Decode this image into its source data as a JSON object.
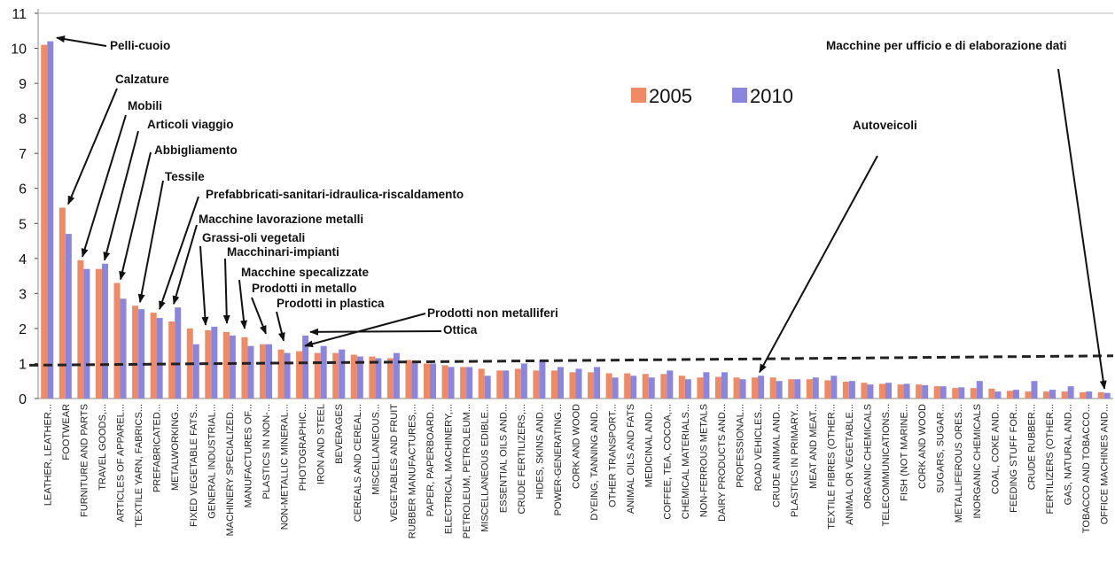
{
  "chart_data": {
    "type": "bar",
    "title": "",
    "xlabel": "",
    "ylabel": "",
    "ylim": [
      0,
      11
    ],
    "yticks": [
      0,
      1,
      2,
      3,
      4,
      5,
      6,
      7,
      8,
      9,
      10,
      11
    ],
    "grid": "off",
    "legend_position": "top-center",
    "colors": {
      "2005": "#f08a64",
      "2010": "#8a86e0"
    },
    "categories": [
      "LEATHER, LEATHER...",
      "FOOTWEAR",
      "FURNITURE AND PARTS",
      "TRAVEL GOODS,...",
      "ARTICLES OF APPAREL...",
      "TEXTILE YARN, FABRICS...",
      "PREFABRICATED...",
      "METALWORKING...",
      "FIXED VEGETABLE FATS...",
      "GENERAL INDUSTRIAL...",
      "MACHINERY SPECIALIZED...",
      "MANUFACTURES OF...",
      "PLASTICS IN NON-...",
      "NON-METALLIC MINERAL...",
      "PHOTOGRAPHIC...",
      "IRON AND STEEL",
      "BEVERAGES",
      "CEREALS AND CEREAL...",
      "MISCELLANEOUS...",
      "VEGETABLES AND FRUIT",
      "RUBBER MANUFACTURES,...",
      "PAPER, PAPERBOARD...",
      "ELECTRICAL MACHINERY,...",
      "PETROLEUM, PETROLEUM...",
      "MISCELLANEOUS EDIBLE...",
      "ESSENTIAL OILS AND...",
      "CRUDE FERTILIZERS,...",
      "HIDES, SKINS AND...",
      "POWER-GENERATING...",
      "CORK AND WOOD",
      "DYEING, TANNING AND...",
      "OTHER TRANSPORT...",
      "ANIMAL OILS AND FATS",
      "MEDICINAL AND...",
      "COFFEE, TEA, COCOA,...",
      "CHEMICAL MATERIALS...",
      "NON-FERROUS METALS",
      "DAIRY PRODUCTS AND...",
      "PROFESSIONAL...",
      "ROAD VEHICLES...",
      "CRUDE ANIMAL AND...",
      "PLASTICS IN PRIMARY...",
      "MEAT AND MEAT...",
      "TEXTILE FIBRES (OTHER...",
      "ANIMAL OR VEGETABLE...",
      "ORGANIC CHEMICALS",
      "TELECOMMUNICATIONS...",
      "FISH (NOT MARINE...",
      "CORK AND WOOD",
      "SUGARS, SUGAR...",
      "METALLIFEROUS ORES...",
      "INORGANIC CHEMICALS",
      "COAL, COKE AND...",
      "FEEDING STUFF FOR...",
      "CRUDE RUBBER...",
      "FERTILIZERS (OTHER...",
      "GAS, NATURAL AND...",
      "TOBACCO AND TOBACCO...",
      "OFFICE MACHINES AND..."
    ],
    "series": [
      {
        "name": "2005",
        "values": [
          10.1,
          5.45,
          3.95,
          3.7,
          3.3,
          2.65,
          2.45,
          2.2,
          2.0,
          1.95,
          1.9,
          1.75,
          1.55,
          1.4,
          1.35,
          1.3,
          1.3,
          1.25,
          1.2,
          1.15,
          1.1,
          1.0,
          0.95,
          0.9,
          0.85,
          0.8,
          0.85,
          0.8,
          0.8,
          0.75,
          0.75,
          0.72,
          0.72,
          0.7,
          0.7,
          0.65,
          0.6,
          0.62,
          0.6,
          0.6,
          0.6,
          0.55,
          0.55,
          0.52,
          0.48,
          0.45,
          0.42,
          0.4,
          0.4,
          0.35,
          0.3,
          0.3,
          0.28,
          0.22,
          0.2,
          0.2,
          0.2,
          0.18,
          0.18
        ]
      },
      {
        "name": "2010",
        "values": [
          10.2,
          4.7,
          3.7,
          3.85,
          2.85,
          2.55,
          2.3,
          2.6,
          1.55,
          2.05,
          1.8,
          1.5,
          1.55,
          1.3,
          1.8,
          1.5,
          1.4,
          1.2,
          1.15,
          1.3,
          1.05,
          1.0,
          0.9,
          0.9,
          0.65,
          0.8,
          1.0,
          1.1,
          0.9,
          0.85,
          0.9,
          0.6,
          0.65,
          0.6,
          0.8,
          0.55,
          0.75,
          0.75,
          0.55,
          0.65,
          0.5,
          0.55,
          0.6,
          0.65,
          0.5,
          0.4,
          0.45,
          0.42,
          0.38,
          0.35,
          0.32,
          0.5,
          0.2,
          0.25,
          0.5,
          0.25,
          0.35,
          0.2,
          0.16
        ]
      }
    ],
    "trend_line": {
      "style": "dashed",
      "start": 0.95,
      "end": 1.22
    },
    "annotations": [
      {
        "text": "Pelli-cuoio",
        "category_index": 0
      },
      {
        "text": "Calzature",
        "category_index": 1
      },
      {
        "text": "Mobili",
        "category_index": 2
      },
      {
        "text": "Articoli viaggio",
        "category_index": 3
      },
      {
        "text": "Abbigliamento",
        "category_index": 4
      },
      {
        "text": "Tessile",
        "category_index": 5
      },
      {
        "text": "Prefabbricati-sanitari-idraulica-riscaldamento",
        "category_index": 6
      },
      {
        "text": "Macchine lavorazione metalli",
        "category_index": 7
      },
      {
        "text": "Grassi-oli vegetali",
        "category_index": 8
      },
      {
        "text": "Macchinari-impianti",
        "category_index": 9
      },
      {
        "text": "Macchine specalizzate",
        "category_index": 10
      },
      {
        "text": "Prodotti in metallo",
        "category_index": 11
      },
      {
        "text": "Prodotti in plastica",
        "category_index": 12
      },
      {
        "text": "Prodotti non metalliferi",
        "category_index": 13
      },
      {
        "text": "Ottica",
        "category_index": 14
      },
      {
        "text": "Autoveicoli",
        "category_index": 39
      },
      {
        "text": "Macchine per ufficio e di elaborazione dati",
        "category_index": 58
      }
    ]
  }
}
